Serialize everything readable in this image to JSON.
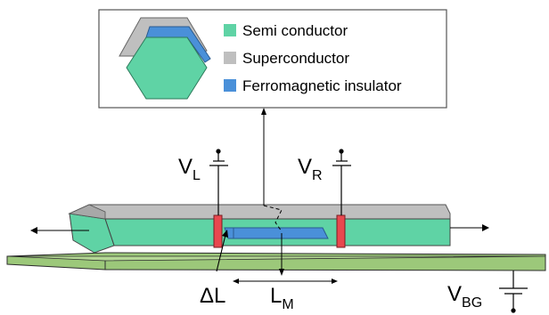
{
  "legend": {
    "items": [
      {
        "label": "Semi conductor",
        "color": "#5fd3a5"
      },
      {
        "label": "Superconductor",
        "color": "#bfbfbf"
      },
      {
        "label": "Ferromagnetic insulator",
        "color": "#4a90d9"
      }
    ]
  },
  "labels": {
    "vl_main": "V",
    "vl_sub": "L",
    "vr_main": "V",
    "vr_sub": "R",
    "delta_l": "ΔL",
    "lm_main": "L",
    "lm_sub": "M",
    "vbg_main": "V",
    "vbg_sub": "BG"
  },
  "colors": {
    "semiconductor": "#5fd3a5",
    "superconductor": "#bfbfbf",
    "ferromagnet": "#4a90d9",
    "gate_electrode": "#e8484f",
    "back_gate": "#9cc87a"
  }
}
